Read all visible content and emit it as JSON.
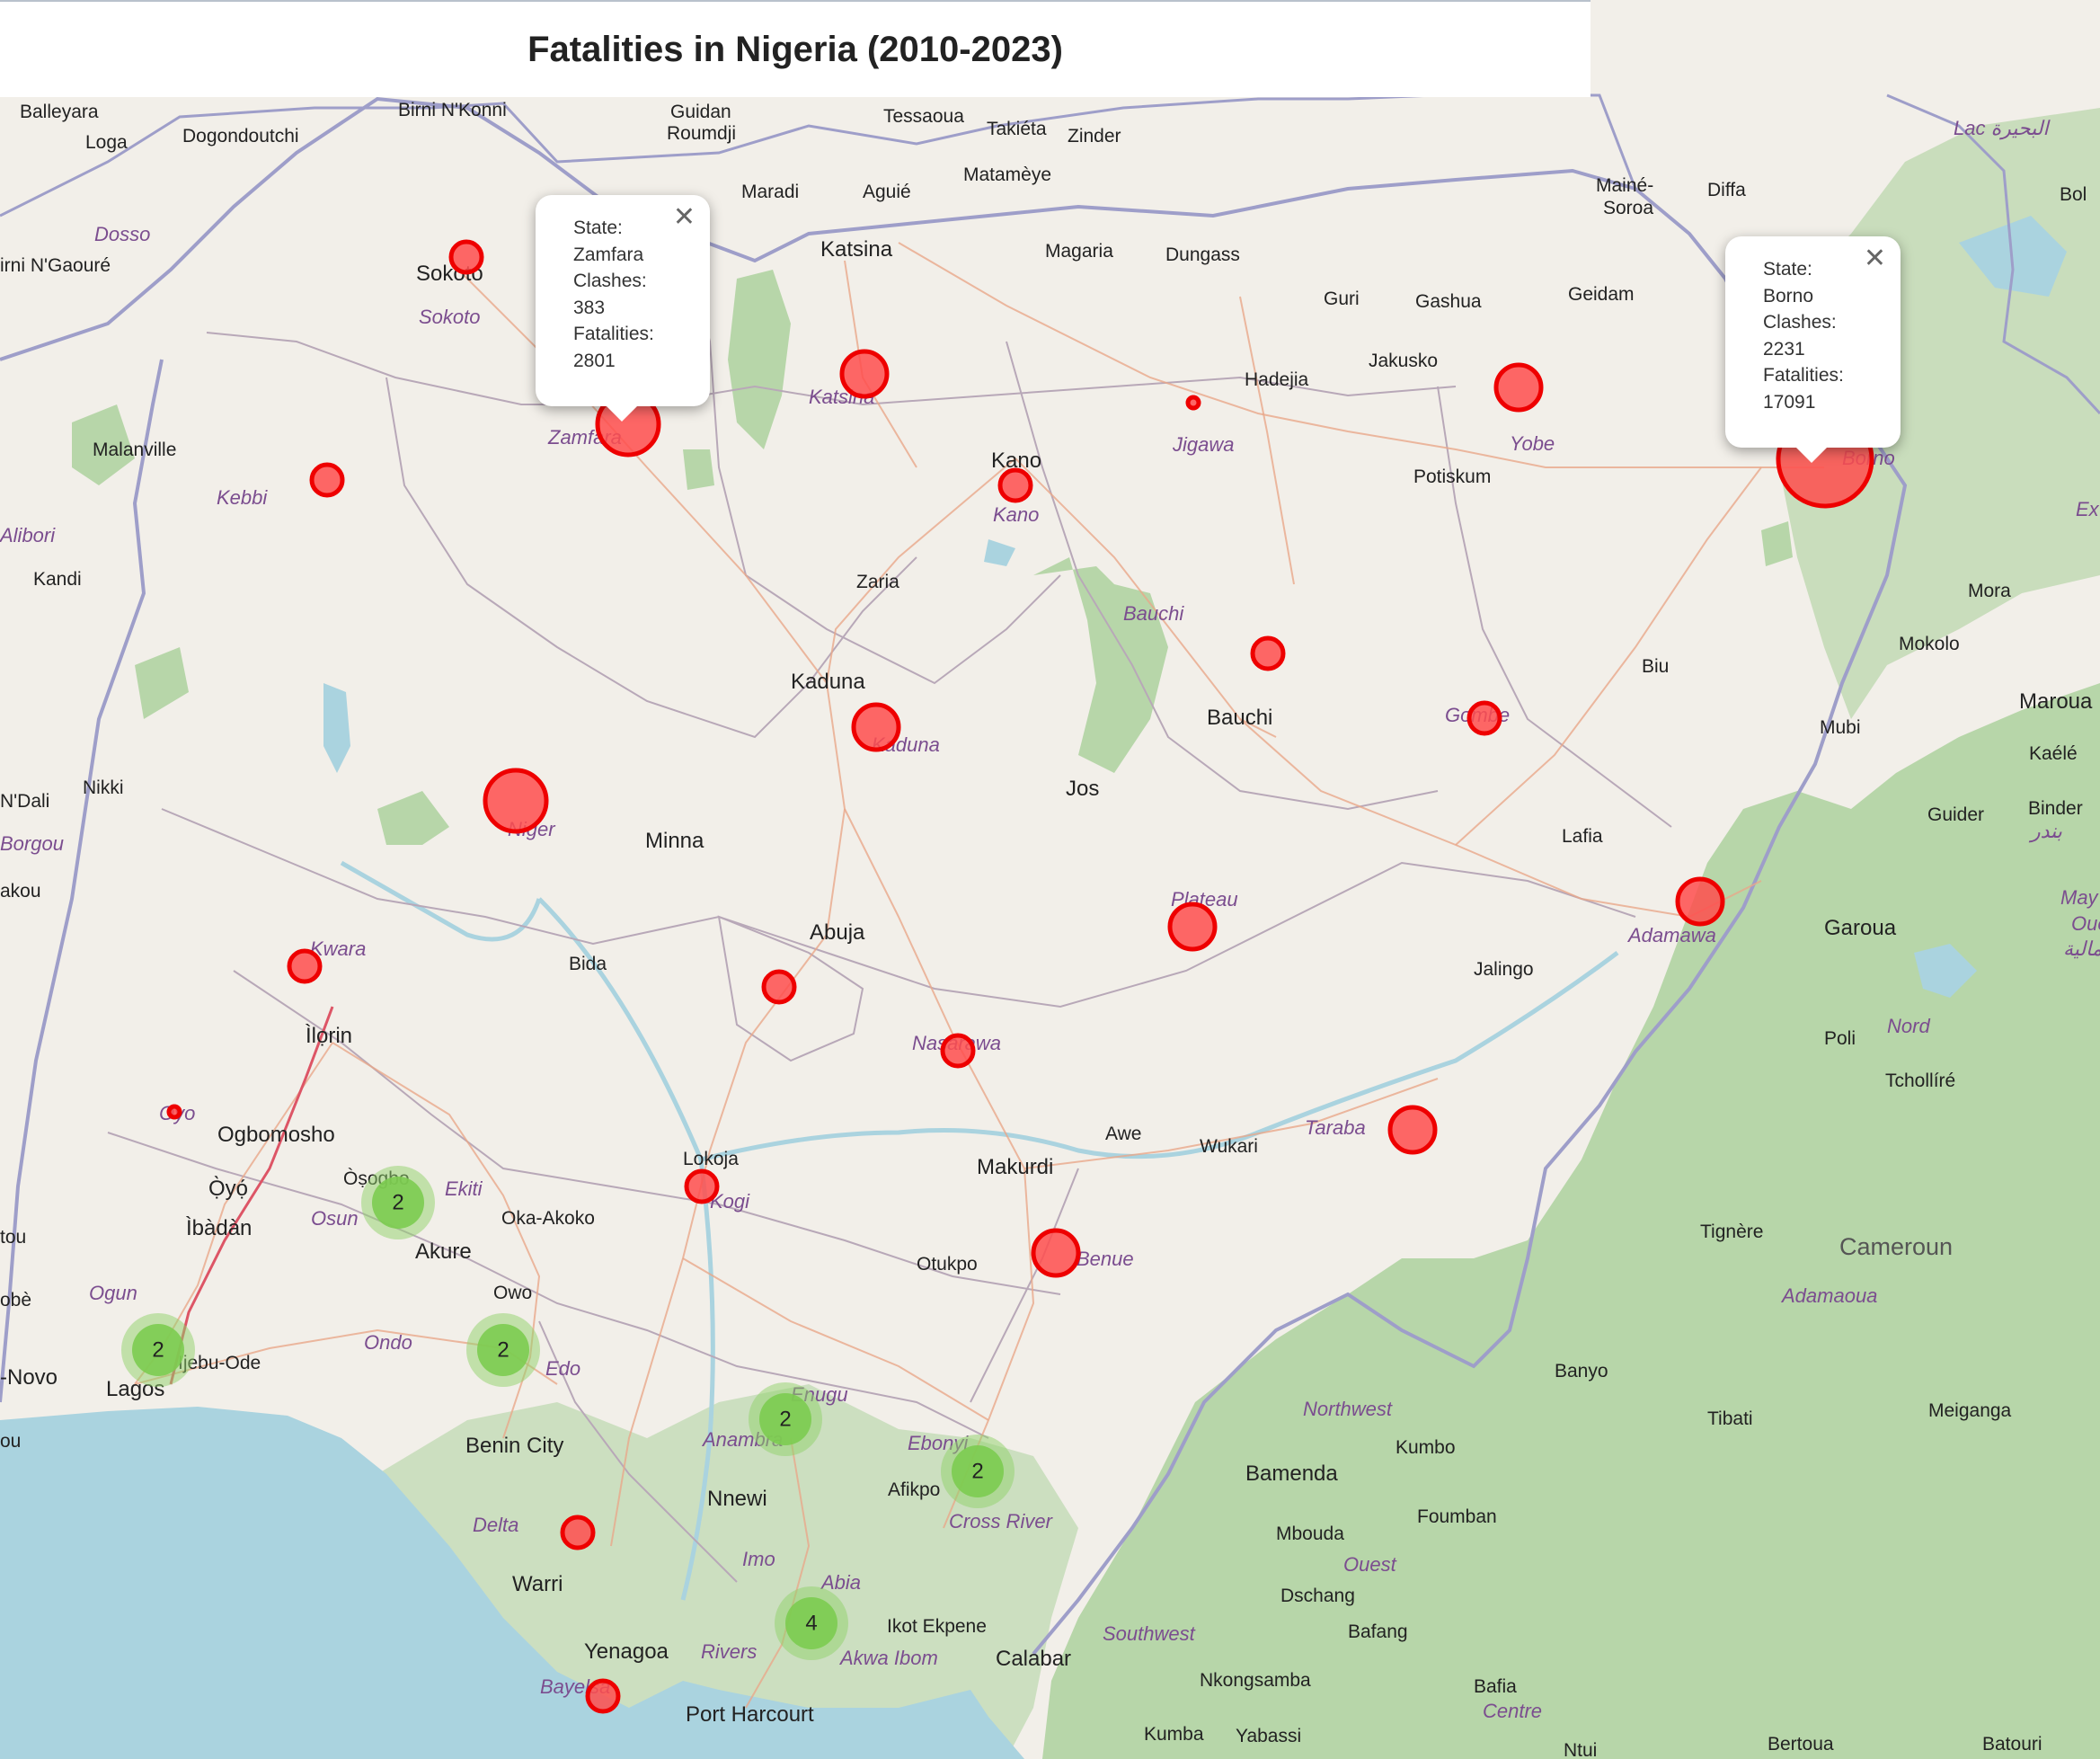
{
  "title": "Fatalities in Nigeria (2010-2023)",
  "colors": {
    "land": "#f2efe9",
    "water": "#aad3df",
    "vegetation": "#add19e",
    "marker_fill": "#ff4d4d",
    "marker_stroke": "#ee0000",
    "cluster": "#7ccc50"
  },
  "popups": {
    "zamfara": {
      "state_label": "State:",
      "state": "Zamfara",
      "clashes_label": "Clashes:",
      "clashes": "383",
      "fatalities_label": "Fatalities:",
      "fatalities": "2801",
      "close": "✕"
    },
    "borno": {
      "state_label": "State:",
      "state": "Borno",
      "clashes_label": "Clashes:",
      "clashes": "2231",
      "fatalities_label": "Fatalities:",
      "fatalities": "17091",
      "close": "✕"
    }
  },
  "clusters": {
    "osun": "2",
    "lagos": "2",
    "ondo": "2",
    "enugu": "2",
    "ebonyi": "2",
    "akwa_ibom": "4"
  },
  "map_labels": {
    "cities": {
      "balleyara": "Balleyara",
      "loga": "Loga",
      "dogondoutchi": "Dogondoutchi",
      "birni_nkonni": "Birni N'Konni",
      "guidan_roumdji_1": "Guidan",
      "guidan_roumdji_2": "Roumdji",
      "tessaoua": "Tessaoua",
      "takieta": "Takiéta",
      "zinder": "Zinder",
      "matameye": "Matamèye",
      "maradi": "Maradi",
      "aguie": "Aguié",
      "maine_soroa_1": "Mainé-",
      "maine_soroa_2": "Soroa",
      "diffa": "Diffa",
      "bol": "Bol",
      "birni_ngaoure": "irni N'Gaouré",
      "sokoto": "Sokoto",
      "katsina": "Katsina",
      "magaria": "Magaria",
      "dungass": "Dungass",
      "guri": "Guri",
      "gashua": "Gashua",
      "geidam": "Geidam",
      "hadejia": "Hadejia",
      "jakusko": "Jakusko",
      "malanville": "Malanville",
      "kano": "Kano",
      "potiskum": "Potiskum",
      "kandi": "Kandi",
      "zaria": "Zaria",
      "mora": "Mora",
      "mokolo": "Mokolo",
      "biu": "Biu",
      "maroua": "Maroua",
      "kaduna": "Kaduna",
      "bauchi": "Bauchi",
      "mubi": "Mubi",
      "kaele": "Kaélé",
      "ndali": "N'Dali",
      "nikki": "Nikki",
      "jos": "Jos",
      "minna": "Minna",
      "lafia": "Lafia",
      "guider": "Guider",
      "binder": "Binder",
      "abuja": "Abuja",
      "garoua": "Garoua",
      "bida": "Bida",
      "jalingo": "Jalingo",
      "akou": "akou",
      "ilorin": "Ìlọrin",
      "poli": "Poli",
      "tcholliré": "Tchollíré",
      "ogbomosho": "Ogbomosho",
      "awe": "Awe",
      "wukari": "Wukari",
      "lokoja": "Lokoja",
      "makurdi": "Makurdi",
      "oyo": "Ọ̀yọ́",
      "osogbo": "Òṣogbo",
      "ibadan": "Ìbàdàn",
      "oka_akoko": "Oka-Akoko",
      "akure": "Akure",
      "tignere": "Tignère",
      "otukpo": "Otukpo",
      "owo": "Owo",
      "ijebu_ode": "Ijebu-Ode",
      "lagos": "Lagos",
      "novo": "-Novo",
      "banyo": "Banyo",
      "tibati": "Tibati",
      "meiganga": "Meiganga",
      "benin_city": "Benin City",
      "kumbo": "Kumbo",
      "nnewi": "Nnewi",
      "afikpo": "Afikpo",
      "bamenda": "Bamenda",
      "mbouda": "Mbouda",
      "foumban": "Foumban",
      "dschang": "Dschang",
      "bafang": "Bafang",
      "warri": "Warri",
      "ikot_ekpene": "Ikot Ekpene",
      "calabar": "Calabar",
      "yenagoa": "Yenagoa",
      "nkongsamba": "Nkongsamba",
      "bafia": "Bafia",
      "port_harcourt": "Port Harcourt",
      "kumba": "Kumba",
      "yabassi": "Yabassi",
      "ntui": "Ntui",
      "bertoua": "Bertoua",
      "batouri": "Batouri",
      "tou": "tou",
      "obe": "obè",
      "ou": "ou"
    },
    "regions": {
      "dosso": "Dosso",
      "sokoto_state": "Sokoto",
      "zamfara": "Zamfara",
      "katsina_state": "Katsina",
      "jigawa": "Jigawa",
      "yobe": "Yobe",
      "borno": "Borno",
      "kebbi": "Kebbi",
      "kano_state": "Kano",
      "alibori": "Alibori",
      "bauchi_state": "Bauchi",
      "gombe": "Gombe",
      "kaduna_state": "Kaduna",
      "niger": "Niger",
      "borgou": "Borgou",
      "plateau": "Plateau",
      "adamawa": "Adamawa",
      "kwara": "Kwara",
      "nasarawa": "Nasarawa",
      "nord": "Nord",
      "oyo_state": "Oyo",
      "taraba": "Taraba",
      "ekiti": "Ekiti",
      "osun": "Osun",
      "kogi": "Kogi",
      "benue": "Benue",
      "ogun": "Ogun",
      "ondo": "Ondo",
      "edo": "Edo",
      "adamaoua": "Adamaoua",
      "enugu": "Enugu",
      "northwest": "Northwest",
      "anambra": "Anambra",
      "ebonyi": "Ebonyi",
      "delta": "Delta",
      "cross_river": "Cross River",
      "ouest": "Ouest",
      "imo": "Imo",
      "abia": "Abia",
      "southwest": "Southwest",
      "rivers": "Rivers",
      "akwa_ibom": "Akwa Ibom",
      "bayelsa": "Bayelsa",
      "centre": "Centre",
      "lac": "Lac البحيرة",
      "may": "May",
      "oue": "Oue",
      "ext": "Ex",
      "guider_ar": "بندر",
      "nord_ar": "الشمالية"
    },
    "countries": {
      "cameroun": "Cameroun"
    }
  }
}
